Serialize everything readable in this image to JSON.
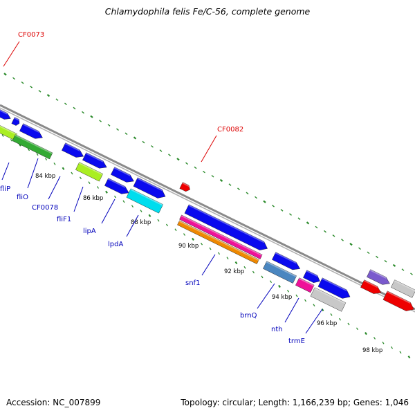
{
  "title": "Chlamydophila felis Fe/C-56, complete genome",
  "footer": {
    "accession": "Accession: NC_007899",
    "topology": "Topology: circular; Length: 1,166,239 bp; Genes: 1,046"
  },
  "callouts": [
    "CF0073",
    "CF0082"
  ],
  "ticks": [
    "84 kbp",
    "86 kbp",
    "88 kbp",
    "90 kbp",
    "92 kbp",
    "94 kbp",
    "96 kbp",
    "98 kbp"
  ],
  "genes": [
    "fliP",
    "fliO",
    "CF0078",
    "fliF1",
    "lipA",
    "lpdA",
    "snf1",
    "brnQ",
    "nth",
    "trmE"
  ],
  "colors": {
    "callout": "#dd0000",
    "gene_label": "#0000bb",
    "backbone": "#888888",
    "tick": "#2a8a2a",
    "blue": "#0a0aee",
    "lime": "#aaee22",
    "green": "#33aa33",
    "cyan": "#00ddee",
    "magenta": "#ee1199",
    "orange": "#ee8800",
    "steel": "#4a86c0",
    "grey": "#c8c8c8",
    "red": "#ee0000",
    "purple": "#7a5acd"
  }
}
